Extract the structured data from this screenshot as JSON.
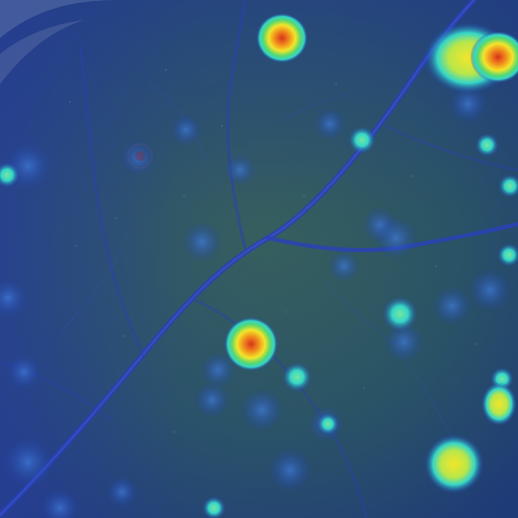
{
  "image": {
    "subject": "leaf-surface-heatmap-overlay",
    "colors": {
      "leaf_base": "#2f5a4f",
      "leaf_dark": "#203f5c",
      "overlay_blue": "#1e3fb0",
      "vein_blue": "#2a3fb8",
      "hot_red": "#d8321b",
      "hot_orange": "#f08b1c",
      "hot_yellow": "#f3e52a",
      "cool_cyan": "#35d6c7",
      "cool_green": "#57d86f"
    }
  }
}
